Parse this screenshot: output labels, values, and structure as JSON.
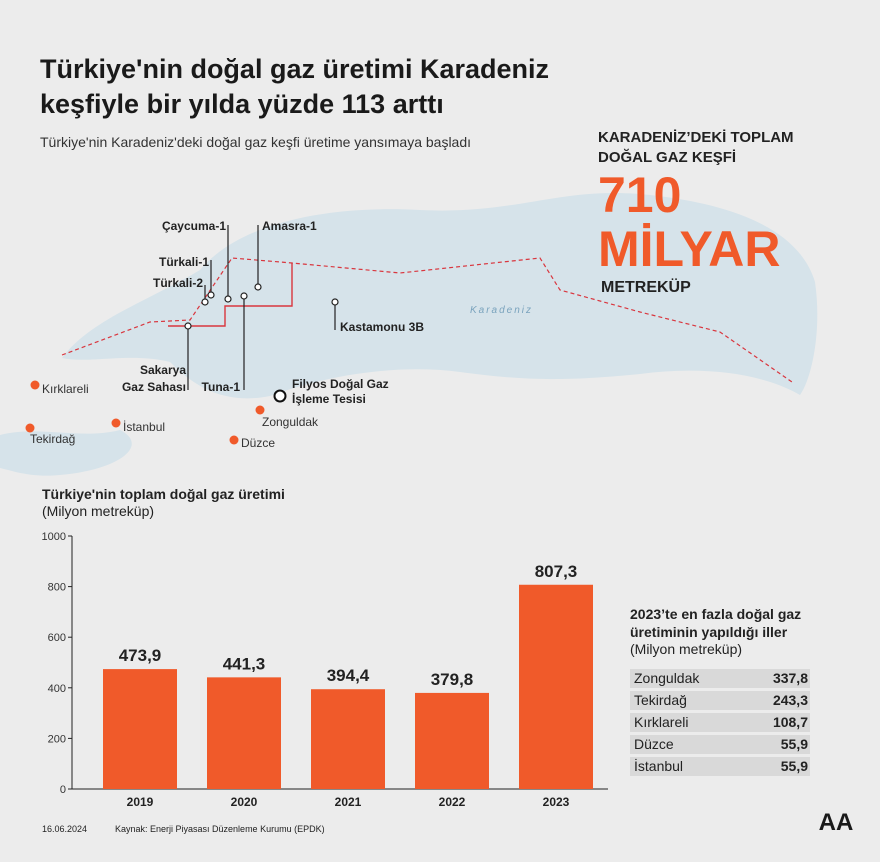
{
  "header": {
    "title_lines": [
      "Türkiye'nin doğal gaz üretimi Karadeniz",
      "keşfiyle bir yılda yüzde 113 arttı"
    ],
    "subtitle": "Türkiye'nin Karadeniz'deki doğal gaz keşfi üretime yansımaya başladı"
  },
  "discovery": {
    "label_lines": [
      "KARADENİZ’DEKİ TOPLAM",
      "DOĞAL GAZ KEŞFİ"
    ],
    "number": "710",
    "magnitude": "MİLYAR",
    "unit": "METREKÜP"
  },
  "map": {
    "sea": "Karadeniz",
    "fields": [
      "Çaycuma-1",
      "Amasra-1",
      "Türkali-1",
      "Türkali-2",
      "Kastamonu 3B",
      "Sakarya",
      "Gaz Sahası",
      "Tuna-1"
    ],
    "facility": [
      "Filyos Doğal Gaz",
      "İşleme Tesisi"
    ],
    "cities": [
      "Kırklareli",
      "Tekirdağ",
      "İstanbul",
      "Zonguldak",
      "Düzce"
    ]
  },
  "chart_data": {
    "type": "bar",
    "title": "Türkiye'nin toplam doğal gaz üretimi",
    "subtitle": "(Milyon metreküp)",
    "categories": [
      "2019",
      "2020",
      "2021",
      "2022",
      "2023"
    ],
    "values": [
      473.9,
      441.3,
      394.4,
      379.8,
      807.3
    ],
    "value_labels": [
      "473,9",
      "441,3",
      "394,4",
      "379,8",
      "807,3"
    ],
    "color": "#f05a2a",
    "ylim": [
      0,
      1000
    ],
    "yticks": [
      0,
      200,
      400,
      600,
      800,
      1000
    ]
  },
  "table": {
    "title_lines": [
      "2023’te en fazla doğal gaz",
      "üretiminin yapıldığı iller"
    ],
    "subtitle": "(Milyon metreküp)",
    "rows": [
      [
        "Zonguldak",
        "337,8"
      ],
      [
        "Tekirdağ",
        "243,3"
      ],
      [
        "Kırklareli",
        "108,7"
      ],
      [
        "Düzce",
        "55,9"
      ],
      [
        "İstanbul",
        "55,9"
      ]
    ]
  },
  "footer": {
    "date": "16.06.2024",
    "source": "Kaynak: Enerji Piyasası Düzenleme Kurumu (EPDK)",
    "logo": "AA"
  }
}
